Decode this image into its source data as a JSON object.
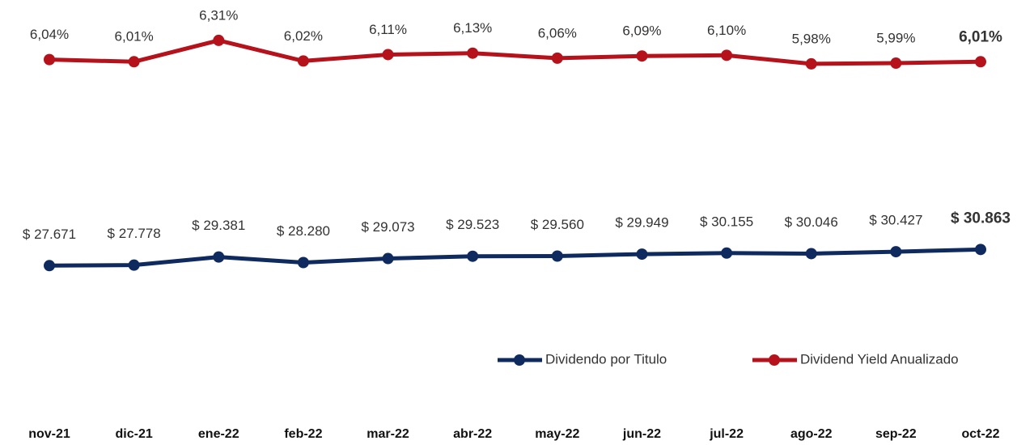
{
  "chart_data": {
    "type": "line",
    "categories": [
      "nov-21",
      "dic-21",
      "ene-22",
      "feb-22",
      "mar-22",
      "abr-22",
      "may-22",
      "jun-22",
      "jul-22",
      "ago-22",
      "sep-22",
      "oct-22"
    ],
    "series": [
      {
        "name": "Dividendo por Titulo",
        "color": "#0e2a5e",
        "values": [
          27671,
          27778,
          29381,
          28280,
          29073,
          29523,
          29560,
          29949,
          30155,
          30046,
          30427,
          30863
        ],
        "value_labels": [
          "$ 27.671",
          "$ 27.778",
          "$ 29.381",
          "$ 28.280",
          "$ 29.073",
          "$ 29.523",
          "$ 29.560",
          "$ 29.949",
          "$ 30.155",
          "$ 30.046",
          "$ 30.427",
          "$ 30.863"
        ]
      },
      {
        "name": "Dividend Yield Anualizado",
        "color": "#b5121b",
        "axis": "y2",
        "values": [
          6.04,
          6.01,
          6.31,
          6.02,
          6.11,
          6.13,
          6.06,
          6.09,
          6.1,
          5.98,
          5.99,
          6.01
        ],
        "value_labels": [
          "6,04%",
          "6,01%",
          "6,31%",
          "6,02%",
          "6,11%",
          "6,13%",
          "6,06%",
          "6,09%",
          "6,10%",
          "5,98%",
          "5,99%",
          "6,01%"
        ]
      }
    ],
    "ylim": [
      13000,
      77000
    ],
    "y2lim": [
      2.1,
      6.65
    ],
    "legend": "bottom-right"
  }
}
